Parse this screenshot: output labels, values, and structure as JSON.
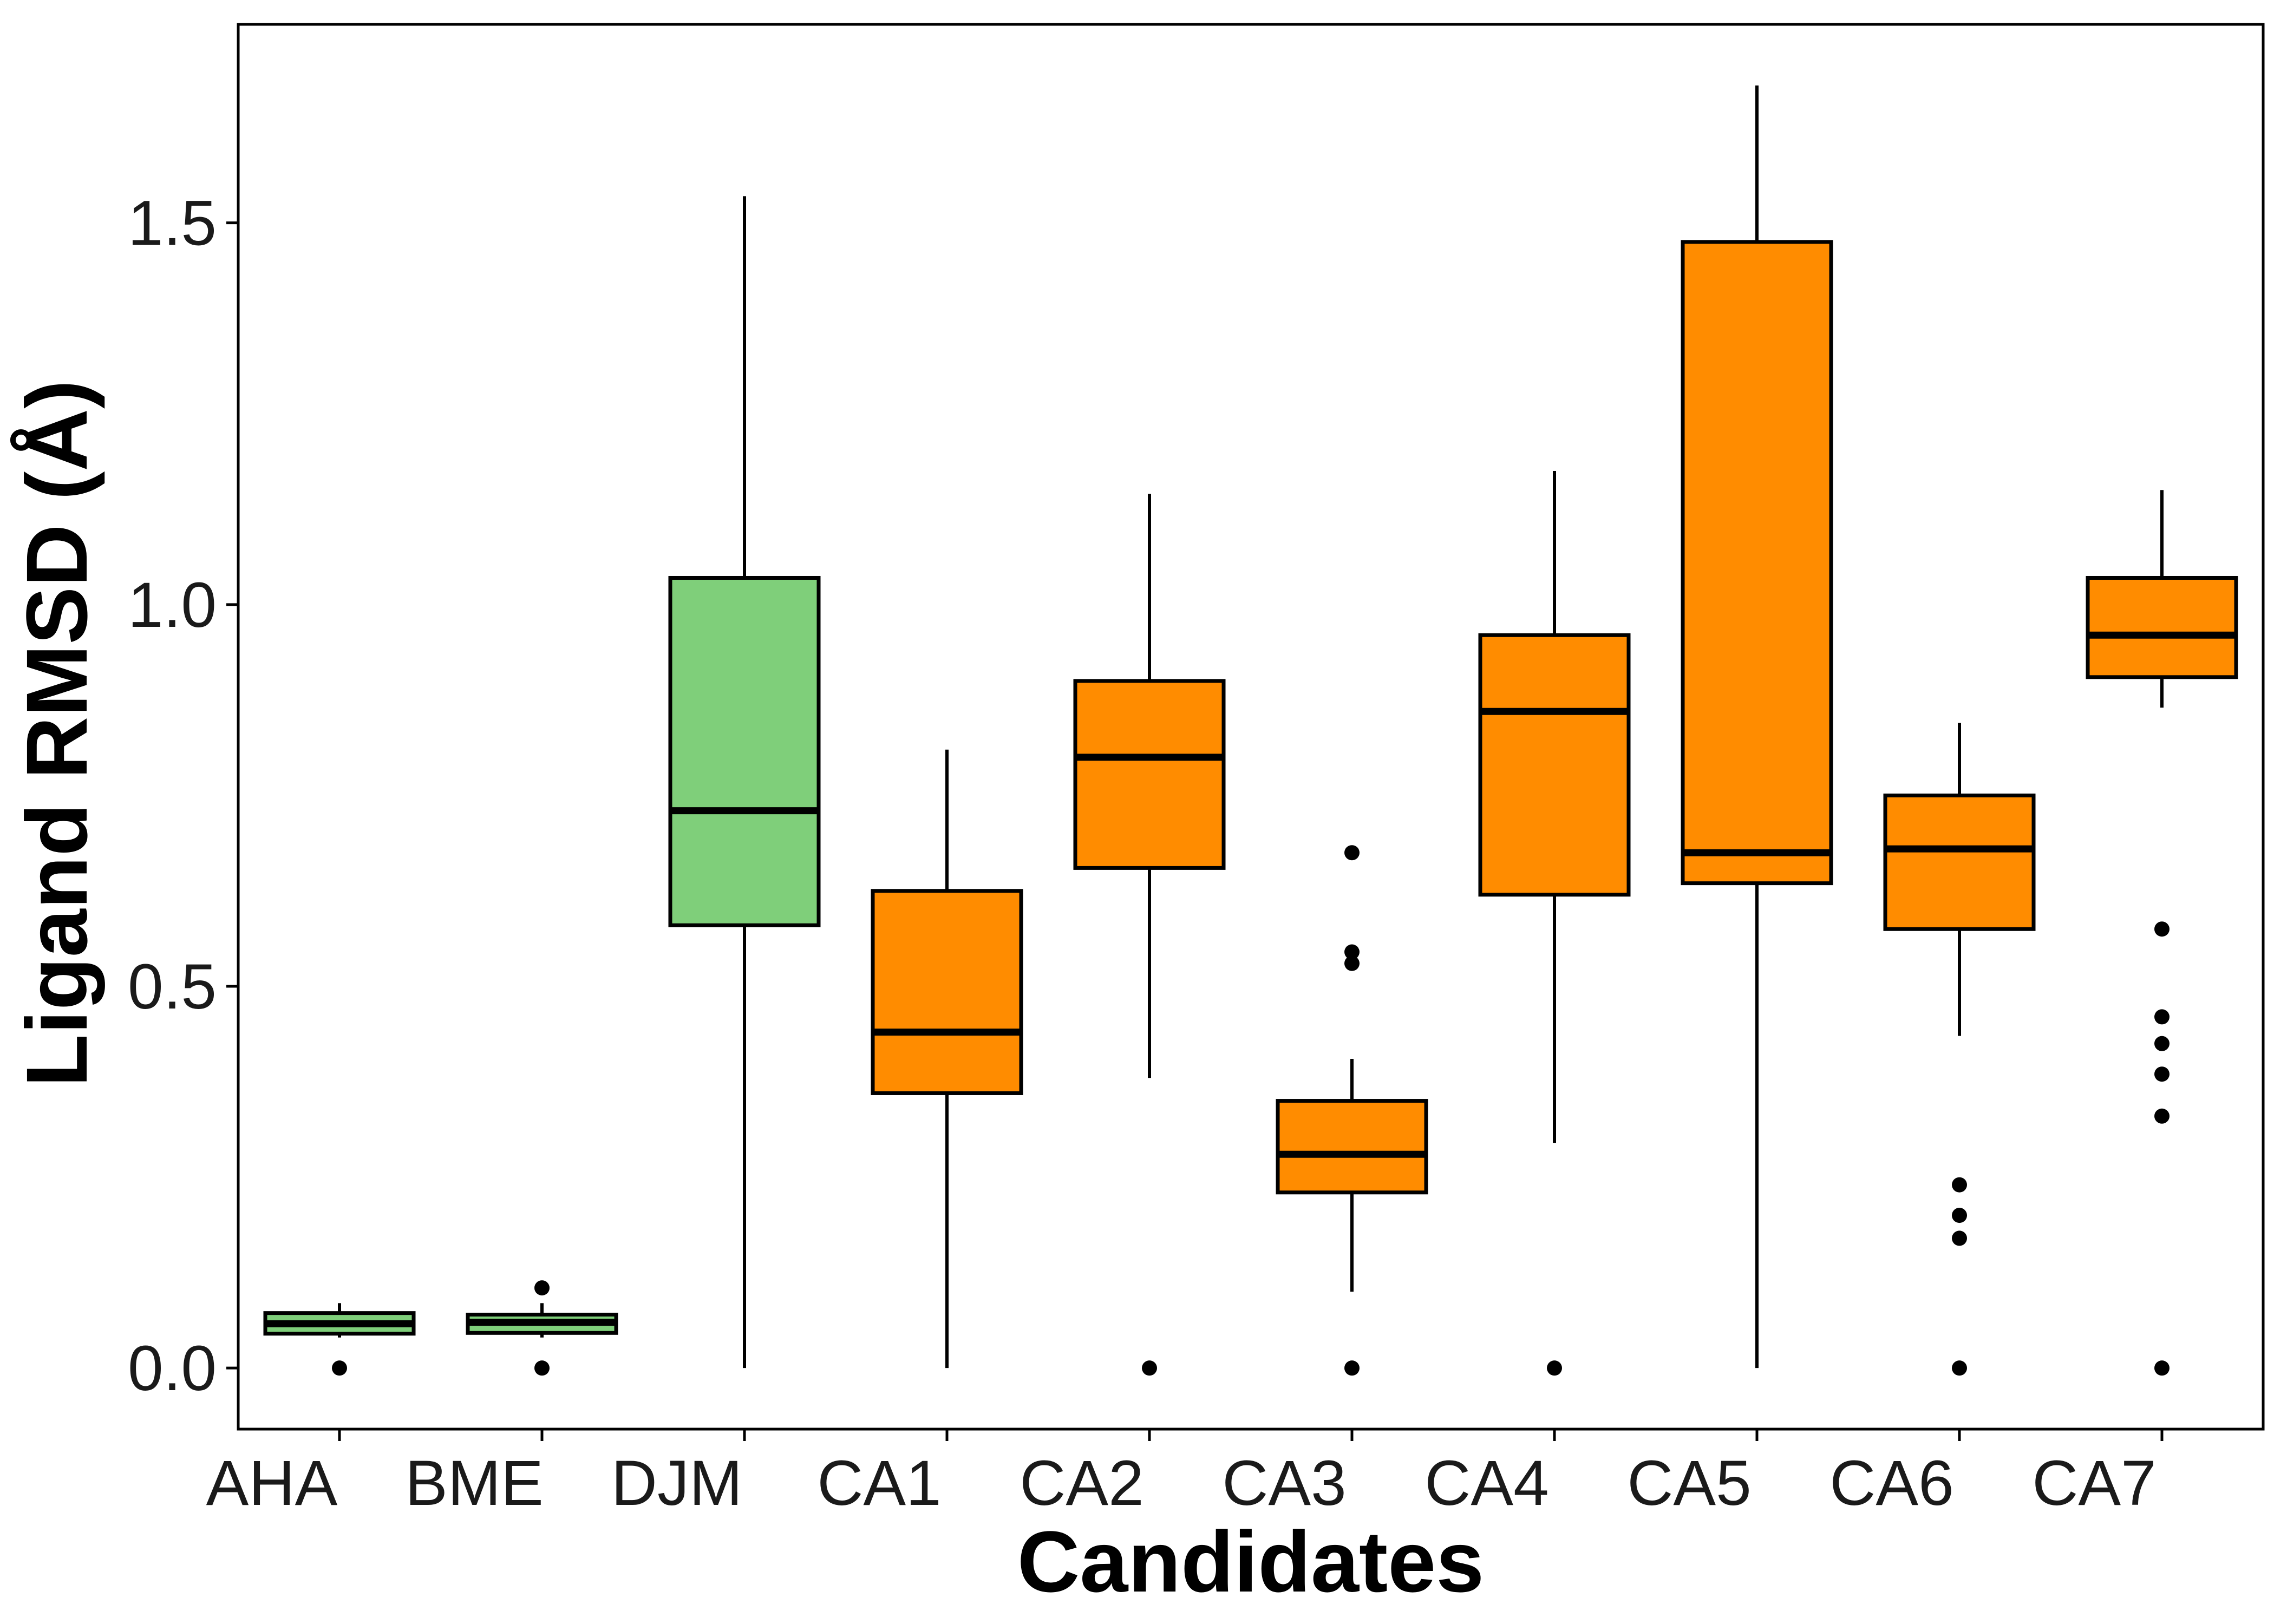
{
  "chart_data": {
    "type": "boxplot",
    "title": "",
    "xlabel": "Candidates",
    "ylabel": "Ligand RMSD (Å)",
    "ylim": [
      -0.08,
      1.76
    ],
    "yticks": [
      0.0,
      0.5,
      1.0,
      1.5
    ],
    "ytick_labels": [
      "0.0",
      "0.5",
      "1.0",
      "1.5"
    ],
    "grid": false,
    "legend": "none",
    "colors": {
      "reference": "#7fcf7a",
      "candidate": "#ff8c00",
      "line": "#000000"
    },
    "categories": [
      "AHA",
      "BME",
      "DJM",
      "CA1",
      "CA2",
      "CA3",
      "CA4",
      "CA5",
      "CA6",
      "CA7"
    ],
    "boxes": [
      {
        "name": "AHA",
        "group": "reference",
        "whisker_low": 0.04,
        "q1": 0.045,
        "median": 0.058,
        "q3": 0.072,
        "whisker_high": 0.085,
        "outliers": [
          0.0
        ]
      },
      {
        "name": "BME",
        "group": "reference",
        "whisker_low": 0.04,
        "q1": 0.046,
        "median": 0.06,
        "q3": 0.07,
        "whisker_high": 0.085,
        "outliers": [
          0.0,
          0.105
        ]
      },
      {
        "name": "DJM",
        "group": "reference",
        "whisker_low": 0.0,
        "q1": 0.58,
        "median": 0.73,
        "q3": 1.035,
        "whisker_high": 1.535,
        "outliers": []
      },
      {
        "name": "CA1",
        "group": "candidate",
        "whisker_low": 0.0,
        "q1": 0.36,
        "median": 0.44,
        "q3": 0.625,
        "whisker_high": 0.81,
        "outliers": []
      },
      {
        "name": "CA2",
        "group": "candidate",
        "whisker_low": 0.38,
        "q1": 0.655,
        "median": 0.8,
        "q3": 0.9,
        "whisker_high": 1.145,
        "outliers": [
          0.0
        ]
      },
      {
        "name": "CA3",
        "group": "candidate",
        "whisker_low": 0.1,
        "q1": 0.23,
        "median": 0.28,
        "q3": 0.35,
        "whisker_high": 0.405,
        "outliers": [
          0.0,
          0.53,
          0.545,
          0.675
        ]
      },
      {
        "name": "CA4",
        "group": "candidate",
        "whisker_low": 0.295,
        "q1": 0.62,
        "median": 0.86,
        "q3": 0.96,
        "whisker_high": 1.175,
        "outliers": [
          0.0
        ]
      },
      {
        "name": "CA5",
        "group": "candidate",
        "whisker_low": 0.0,
        "q1": 0.635,
        "median": 0.675,
        "q3": 1.475,
        "whisker_high": 1.68,
        "outliers": []
      },
      {
        "name": "CA6",
        "group": "candidate",
        "whisker_low": 0.435,
        "q1": 0.575,
        "median": 0.68,
        "q3": 0.75,
        "whisker_high": 0.845,
        "outliers": [
          0.0,
          0.17,
          0.2,
          0.24
        ]
      },
      {
        "name": "CA7",
        "group": "candidate",
        "whisker_low": 0.865,
        "q1": 0.905,
        "median": 0.96,
        "q3": 1.035,
        "whisker_high": 1.15,
        "outliers": [
          0.0,
          0.33,
          0.385,
          0.425,
          0.46,
          0.575
        ]
      }
    ]
  }
}
